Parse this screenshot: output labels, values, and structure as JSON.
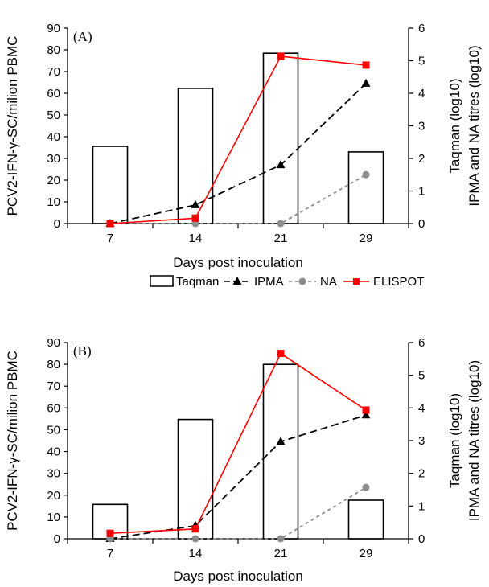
{
  "legend": {
    "taqman": "Taqman",
    "ipma": "IPMA",
    "na": "NA",
    "elispot": "ELISPOT"
  },
  "colors": {
    "taqman": "#000000",
    "ipma": "#000000",
    "na": "#8c8c8c",
    "elispot": "#ff0000"
  },
  "chart_data": [
    {
      "type": "bar",
      "panel_label": "(A)",
      "categories": [
        "7",
        "14",
        "21",
        "29"
      ],
      "xlabel": "Days post inoculation",
      "ylabel": "PCV2-IFN-γ-SC/milion PBMC",
      "ylabel2_line1": "Taqman (log10)",
      "ylabel2_line2": "IPMA and NA titres (log10)",
      "ylim": [
        0,
        90
      ],
      "ylim2": [
        0,
        6
      ],
      "yticks": [
        0,
        10,
        20,
        30,
        40,
        50,
        60,
        70,
        80,
        90
      ],
      "yticks2": [
        0,
        1,
        2,
        3,
        4,
        5,
        6
      ],
      "series": [
        {
          "name": "Taqman",
          "axis": "right",
          "type": "bar",
          "values": [
            2.37,
            4.15,
            5.23,
            2.2
          ]
        },
        {
          "name": "IPMA",
          "axis": "right",
          "type": "line",
          "values": [
            0,
            0.57,
            1.8,
            4.3
          ]
        },
        {
          "name": "NA",
          "axis": "right",
          "type": "line",
          "values": [
            0,
            0,
            0,
            1.5
          ]
        },
        {
          "name": "ELISPOT",
          "axis": "left",
          "type": "line",
          "values": [
            0,
            2.5,
            77,
            73
          ]
        }
      ]
    },
    {
      "type": "bar",
      "panel_label": "(B)",
      "categories": [
        "7",
        "14",
        "21",
        "29"
      ],
      "xlabel": "Days post inoculation",
      "ylabel": "PCV2-IFN-γ-SC/milion PBMC",
      "ylabel2_line1": "Taqman (log10)",
      "ylabel2_line2": "IPMA and NA titres (log10)",
      "ylim": [
        0,
        90
      ],
      "ylim2": [
        0,
        6
      ],
      "yticks": [
        0,
        10,
        20,
        30,
        40,
        50,
        60,
        70,
        80,
        90
      ],
      "yticks2": [
        0,
        1,
        2,
        3,
        4,
        5,
        6
      ],
      "series": [
        {
          "name": "Taqman",
          "axis": "right",
          "type": "bar",
          "values": [
            1.05,
            3.65,
            5.33,
            1.18
          ]
        },
        {
          "name": "IPMA",
          "axis": "right",
          "type": "line",
          "values": [
            0,
            0.4,
            2.97,
            3.78
          ]
        },
        {
          "name": "NA",
          "axis": "right",
          "type": "line",
          "values": [
            0,
            0,
            0,
            1.57
          ]
        },
        {
          "name": "ELISPOT",
          "axis": "left",
          "type": "line",
          "values": [
            2.5,
            4.5,
            85,
            59
          ]
        }
      ]
    }
  ]
}
